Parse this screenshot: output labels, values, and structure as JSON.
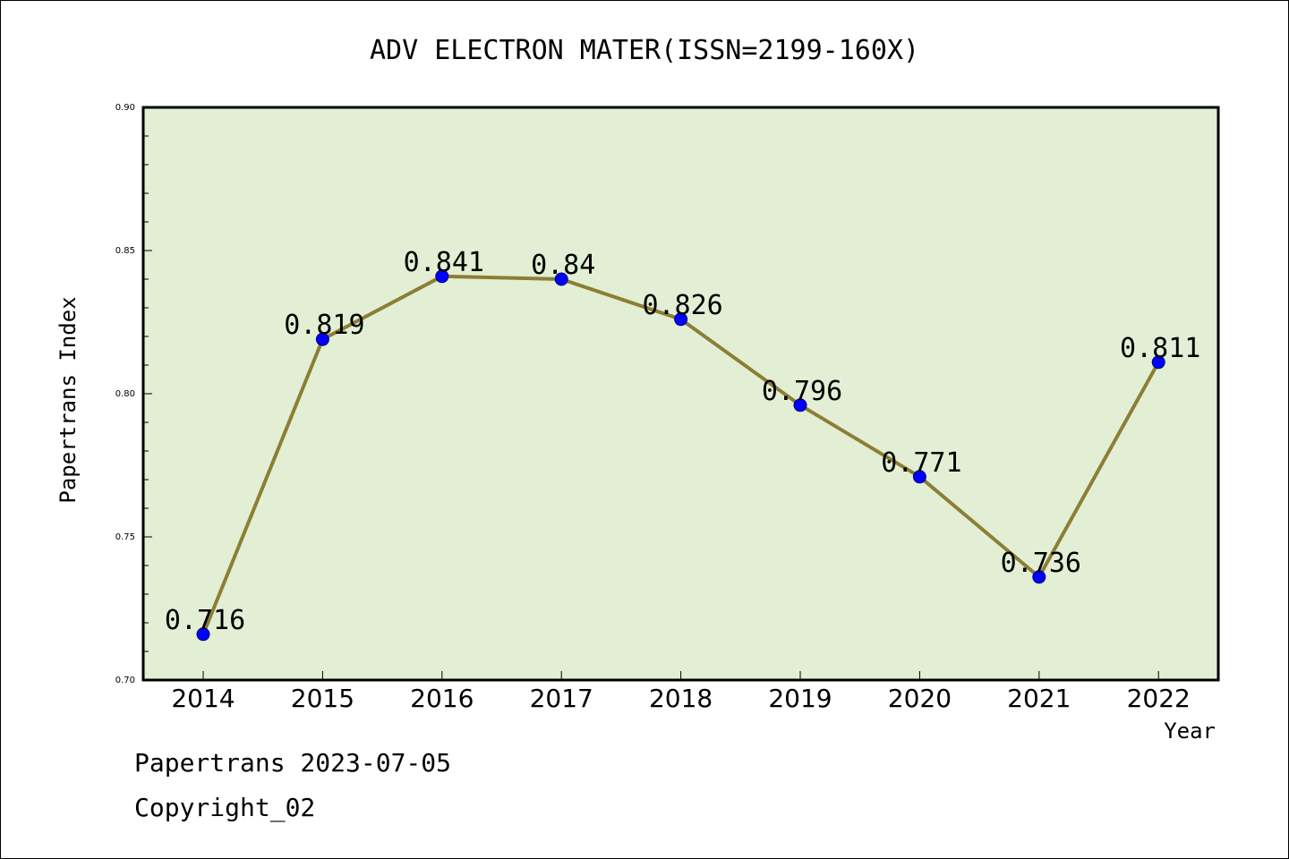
{
  "chart_data": {
    "type": "line",
    "title": "ADV ELECTRON MATER(ISSN=2199-160X)",
    "xlabel": "Year",
    "ylabel": "Papertrans Index",
    "categories": [
      "2014",
      "2015",
      "2016",
      "2017",
      "2018",
      "2019",
      "2020",
      "2021",
      "2022"
    ],
    "series": [
      {
        "values": [
          0.716,
          0.819,
          0.841,
          0.84,
          0.826,
          0.796,
          0.771,
          0.736,
          0.811
        ],
        "labels": [
          "0.716",
          "0.819",
          "0.841",
          "0.84",
          "0.826",
          "0.796",
          "0.771",
          "0.736",
          "0.811"
        ]
      }
    ],
    "ylim": [
      0.7,
      0.9
    ],
    "yticks": [
      "0.70",
      "0.75",
      "0.80",
      "0.85",
      "0.90"
    ],
    "grid": false,
    "legend": "none",
    "colors": {
      "plot_background": "#e2efd4",
      "line": "#8c7e35",
      "marker": "#0000ff"
    }
  },
  "footer": {
    "line1": "Papertrans 2023-07-05",
    "line2": "Copyright_02"
  }
}
